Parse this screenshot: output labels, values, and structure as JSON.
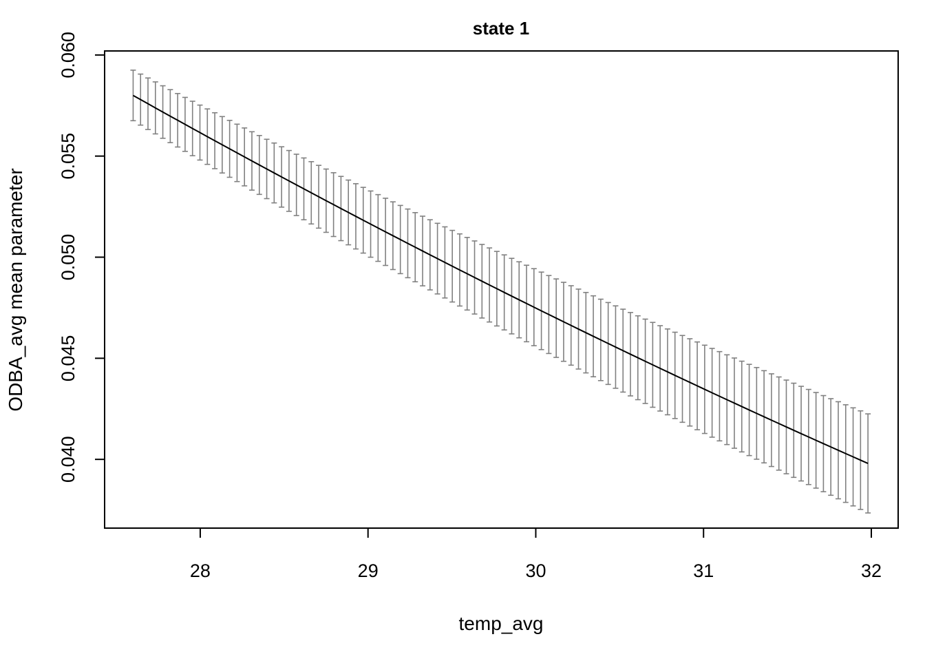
{
  "chart_data": {
    "type": "line",
    "title": "state 1",
    "xlabel": "temp_avg",
    "ylabel": "ODBA_avg mean parameter",
    "xlim": [
      27.43,
      32.16
    ],
    "ylim": [
      0.0366,
      0.0602
    ],
    "x_ticks": [
      28,
      29,
      30,
      31,
      32
    ],
    "x_tick_labels": [
      "28",
      "29",
      "30",
      "31",
      "32"
    ],
    "y_ticks": [
      0.04,
      0.045,
      0.05,
      0.055,
      0.06
    ],
    "y_tick_labels": [
      "0.040",
      "0.045",
      "0.050",
      "0.055",
      "0.060"
    ],
    "grid": false,
    "legend": "none",
    "line_color": "#000000",
    "errorbar_color": "#808080",
    "series": {
      "x_start": 27.6,
      "x_end": 31.98,
      "n_points": 100,
      "y_start": 0.058,
      "y_end": 0.0398,
      "curvature": 0.00055,
      "ci_halfwidth_start": 0.00125,
      "ci_halfwidth_end": 0.00245
    }
  }
}
